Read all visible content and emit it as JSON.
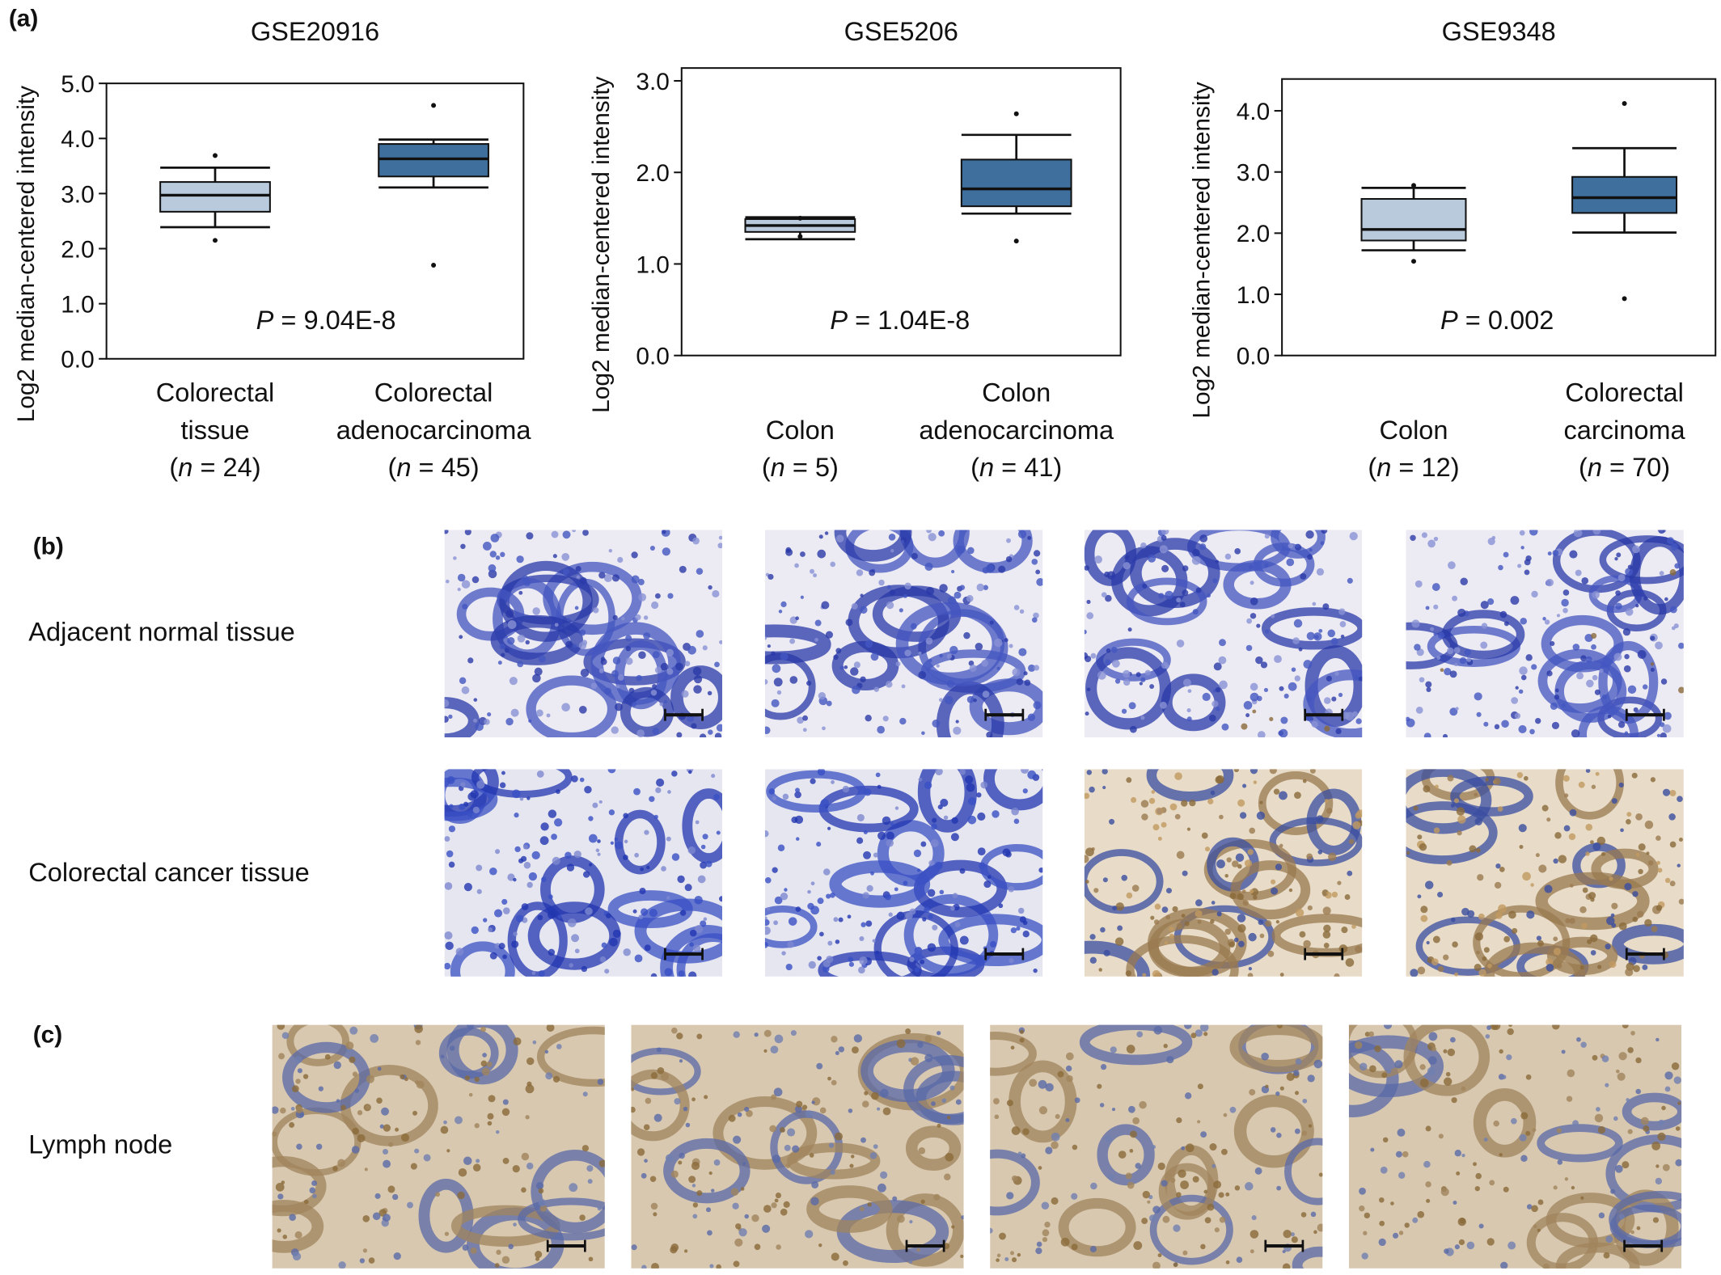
{
  "panels": {
    "a": "(a)",
    "b": "(b)",
    "c": "(c)"
  },
  "row_labels": {
    "normal": "Adjacent normal tissue",
    "cancer": "Colorectal cancer tissue",
    "lymph": "Lymph node"
  },
  "chart_data": [
    {
      "type": "box",
      "title": "GSE20916",
      "ylabel": "Log2 median-centered intensity",
      "categories": [
        [
          "Colorectal",
          "tissue",
          "(n = 24)"
        ],
        [
          "Colorectal",
          "adenocarcinoma",
          "(n = 45)"
        ]
      ],
      "boxes": [
        {
          "color": "#b9cadc",
          "whisker_low": 2.39,
          "q1": 2.67,
          "median": 2.97,
          "q3": 3.21,
          "whisker_high": 3.47,
          "outliers": [
            3.69,
            2.15
          ]
        },
        {
          "color": "#3f6f9c",
          "whisker_low": 3.11,
          "q1": 3.31,
          "median": 3.63,
          "q3": 3.9,
          "whisker_high": 3.98,
          "outliers": [
            4.6,
            1.7
          ]
        }
      ],
      "annotation": "P = 9.04E-8",
      "ylim": [
        0,
        5.0
      ],
      "yticks": [
        {
          "value": 0,
          "label": "0.0"
        },
        {
          "value": 1,
          "label": "1.0"
        },
        {
          "value": 2,
          "label": "2.0"
        },
        {
          "value": 3,
          "label": "3.0"
        },
        {
          "value": 4,
          "label": "4.0"
        },
        {
          "value": 5,
          "label": "5.0"
        }
      ]
    },
    {
      "type": "box",
      "title": "GSE5206",
      "ylabel": "Log2 median-centered intensity",
      "categories": [
        [
          "Colon",
          "(n = 5)"
        ],
        [
          "Colon",
          "adenocarcinoma",
          "(n = 41)"
        ]
      ],
      "boxes": [
        {
          "color": "#b9cadc",
          "whisker_low": 1.27,
          "q1": 1.35,
          "median": 1.42,
          "q3": 1.49,
          "whisker_high": 1.51,
          "outliers": [
            1.5,
            1.3
          ]
        },
        {
          "color": "#3f6f9c",
          "whisker_low": 1.55,
          "q1": 1.63,
          "median": 1.82,
          "q3": 2.14,
          "whisker_high": 2.41,
          "outliers": [
            2.64,
            1.25
          ]
        }
      ],
      "annotation": "P = 1.04E-8",
      "ylim": [
        0,
        3.14
      ],
      "yticks": [
        {
          "value": 0,
          "label": "0.0"
        },
        {
          "value": 1,
          "label": "1.0"
        },
        {
          "value": 2,
          "label": "2.0"
        },
        {
          "value": 3,
          "label": "3.0"
        }
      ]
    },
    {
      "type": "box",
      "title": "GSE9348",
      "ylabel": "Log2 median-centered intensity",
      "categories": [
        [
          "Colon",
          "(n = 12)"
        ],
        [
          "Colorectal",
          "carcinoma",
          "(n = 70)"
        ]
      ],
      "boxes": [
        {
          "color": "#b9cadc",
          "whisker_low": 1.72,
          "q1": 1.88,
          "median": 2.06,
          "q3": 2.56,
          "whisker_high": 2.74,
          "outliers": [
            2.78,
            1.54
          ]
        },
        {
          "color": "#3f6f9c",
          "whisker_low": 2.01,
          "q1": 2.33,
          "median": 2.58,
          "q3": 2.92,
          "whisker_high": 3.39,
          "outliers": [
            4.12,
            0.93
          ]
        }
      ],
      "annotation": "P = 0.002",
      "ylim": [
        0,
        4.52
      ],
      "yticks": [
        {
          "value": 0,
          "label": "0.0"
        },
        {
          "value": 1,
          "label": "1.0"
        },
        {
          "value": 2,
          "label": "2.0"
        },
        {
          "value": 3,
          "label": "3.0"
        },
        {
          "value": 4,
          "label": "4.0"
        }
      ]
    }
  ]
}
